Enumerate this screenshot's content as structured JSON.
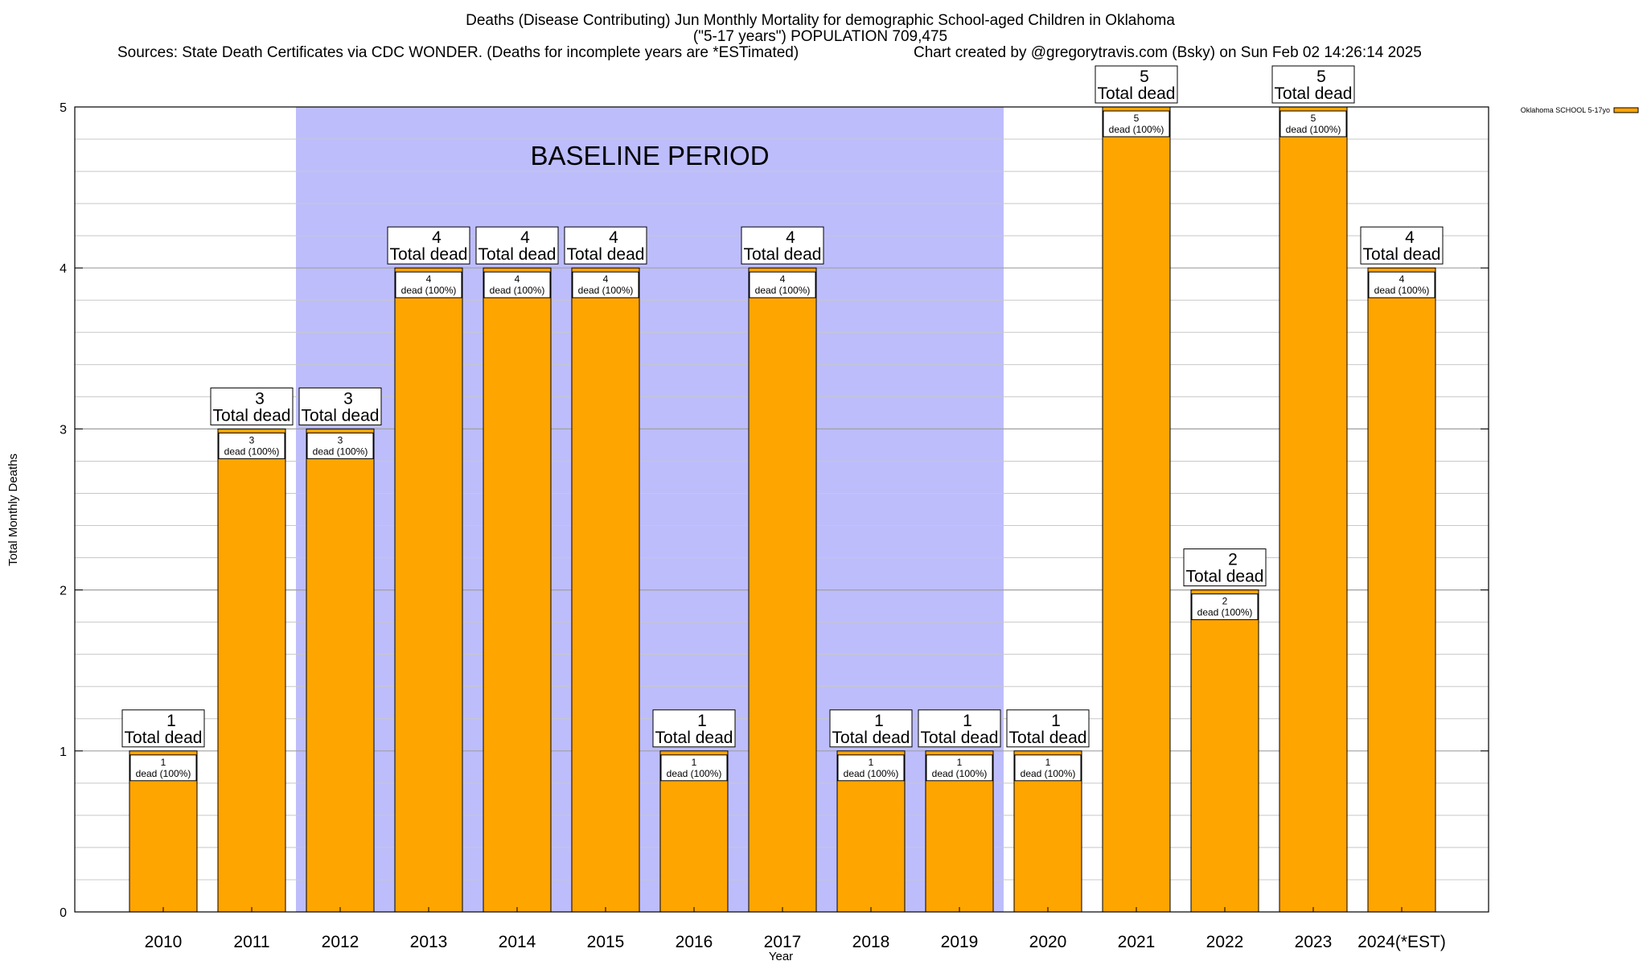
{
  "title": {
    "line1": "Deaths (Disease Contributing) Jun Monthly Mortality for demographic School-aged Children in Oklahoma",
    "line2": "(\"5-17 years\") POPULATION 709,475",
    "line3_left": "Sources: State Death Certificates via CDC WONDER. (Deaths for incomplete years are *ESTimated)",
    "line3_right": "Chart created by @gregorytravis.com (Bsky) on Sun Feb 02 14:26:14 2025"
  },
  "colors": {
    "bar": "#ffa500",
    "baseline_shade": "#bdbdfc",
    "grid": "#c8c8c8"
  },
  "chart_data": {
    "type": "bar",
    "xlabel": "Year",
    "ylabel": "Total Monthly Deaths",
    "ylim": [
      0,
      5
    ],
    "y_ticks": [
      0,
      1,
      2,
      3,
      4,
      5
    ],
    "grid": true,
    "legend_position": "top-right",
    "categories": [
      "2010",
      "2011",
      "2012",
      "2013",
      "2014",
      "2015",
      "2016",
      "2017",
      "2018",
      "2019",
      "2020",
      "2021",
      "2022",
      "2023",
      "2024(*EST)"
    ],
    "series": [
      {
        "name": "Oklahoma SCHOOL 5-17yo",
        "values": [
          1,
          3,
          3,
          4,
          4,
          4,
          1,
          4,
          1,
          1,
          1,
          5,
          2,
          5,
          4
        ]
      }
    ],
    "bar_label_total": "Total dead",
    "bar_label_inner": "dead (100%)",
    "annotation": {
      "text": "BASELINE PERIOD",
      "start_category": "2012",
      "end_category": "2019"
    }
  }
}
